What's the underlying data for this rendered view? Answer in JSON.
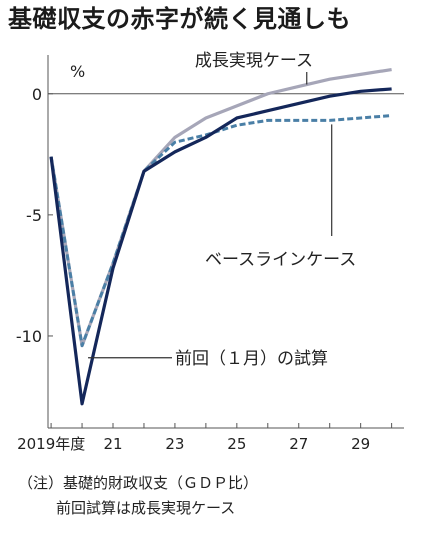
{
  "title": "基礎収支の赤字が続く見通しも",
  "notes": {
    "line1": "（注）基礎的財政収支（ＧＤＰ比）",
    "line2": "前回試算は成長実現ケース"
  },
  "colors": {
    "background": "#ffffff",
    "text": "#222222",
    "axis": "#555555",
    "growth": "#a6a6b8",
    "baseline": "#4a7fa6",
    "previous": "#14275a"
  },
  "chart_data": {
    "type": "line",
    "unit_label": "%",
    "x": [
      2019,
      2020,
      2021,
      2022,
      2023,
      2024,
      2025,
      2026,
      2027,
      2028,
      2029,
      2030
    ],
    "x_tick_labels": [
      {
        "x": 2019,
        "label": "2019年度"
      },
      {
        "x": 2021,
        "label": "21"
      },
      {
        "x": 2023,
        "label": "23"
      },
      {
        "x": 2025,
        "label": "25"
      },
      {
        "x": 2027,
        "label": "27"
      },
      {
        "x": 2029,
        "label": "29"
      }
    ],
    "y_ticks": [
      0,
      -5,
      -10
    ],
    "y_tick_labels": [
      "0",
      "-5",
      "-10"
    ],
    "ylim": [
      -13.8,
      1.6
    ],
    "xlim": [
      2018.9,
      2030.4
    ],
    "grid": false,
    "series": [
      {
        "name": "成長実現ケース",
        "color": "#a6a6b8",
        "style": "solid",
        "values": [
          -2.6,
          -10.4,
          -7.0,
          -3.2,
          -1.8,
          -1.0,
          -0.5,
          0.0,
          0.3,
          0.6,
          0.8,
          1.0
        ]
      },
      {
        "name": "ベースラインケース",
        "color": "#4a7fa6",
        "style": "dashed",
        "values": [
          -2.6,
          -10.4,
          -7.0,
          -3.2,
          -2.0,
          -1.7,
          -1.3,
          -1.1,
          -1.1,
          -1.1,
          -1.0,
          -0.9
        ]
      },
      {
        "name": "前回（１月）の試算",
        "color": "#14275a",
        "style": "solid",
        "values": [
          -2.6,
          -12.8,
          -7.2,
          -3.2,
          -2.4,
          -1.8,
          -1.0,
          -0.7,
          -0.4,
          -0.1,
          0.1,
          0.2
        ]
      }
    ],
    "annotations": [
      {
        "series": 0,
        "text": "成長実現ケース",
        "point_x": 2027,
        "point_y": 0.3
      },
      {
        "series": 1,
        "text": "ベースラインケース",
        "point_x": 2028,
        "point_y": -1.1
      },
      {
        "series": 2,
        "text": "前回（１月）の試算",
        "point_x": 2020,
        "point_y": -10.9
      }
    ]
  }
}
